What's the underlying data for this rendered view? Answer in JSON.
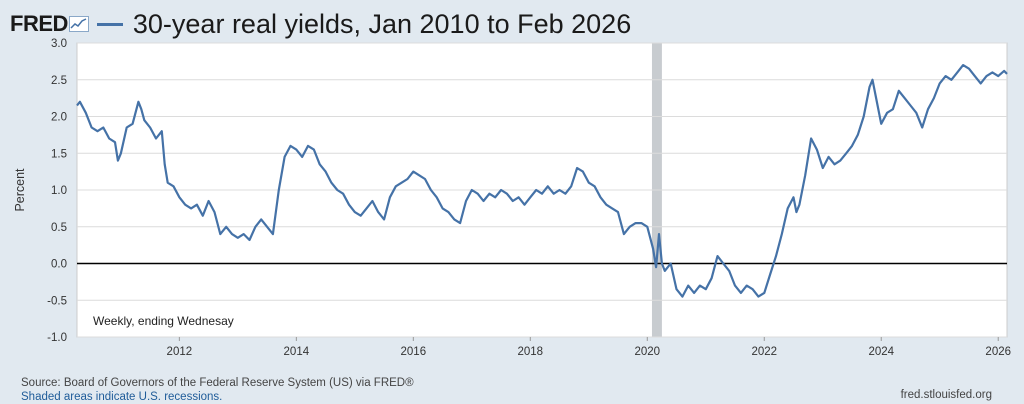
{
  "header": {
    "logo_text": "FRED",
    "title": "30-year real yields, Jan 2010 to Feb 2026"
  },
  "footer": {
    "source": "Source: Board of Governors of the Federal Reserve System (US) via FRED®",
    "recessions_note": "Shaded areas indicate U.S. recessions.",
    "site": "fred.stlouisfed.org"
  },
  "colors": {
    "series": "#4572a7",
    "background": "#e1e9f0",
    "plot": "#ffffff",
    "recession": "#c8ccd0"
  },
  "chart_data": {
    "type": "line",
    "title": "30-year real yields, Jan 2010 to Feb 2026",
    "ylabel": "Percent",
    "annotation": "Weekly, ending Wednesay",
    "ylim": [
      -1.0,
      3.0
    ],
    "xlim": [
      2010.25,
      2026.15
    ],
    "y_ticks": [
      "3.0",
      "2.5",
      "2.0",
      "1.5",
      "1.0",
      "0.5",
      "0.0",
      "-0.5",
      "-1.0"
    ],
    "x_ticks": [
      "2012",
      "2014",
      "2016",
      "2018",
      "2020",
      "2022",
      "2024",
      "2026"
    ],
    "zero_line": 0,
    "recessions": [
      {
        "start": 2020.08,
        "end": 2020.25
      }
    ],
    "series": [
      {
        "points": [
          [
            2010.25,
            2.15
          ],
          [
            2010.3,
            2.2
          ],
          [
            2010.4,
            2.05
          ],
          [
            2010.5,
            1.85
          ],
          [
            2010.6,
            1.8
          ],
          [
            2010.7,
            1.85
          ],
          [
            2010.8,
            1.7
          ],
          [
            2010.9,
            1.65
          ],
          [
            2010.95,
            1.4
          ],
          [
            2011.0,
            1.5
          ],
          [
            2011.1,
            1.85
          ],
          [
            2011.2,
            1.9
          ],
          [
            2011.3,
            2.2
          ],
          [
            2011.35,
            2.1
          ],
          [
            2011.4,
            1.95
          ],
          [
            2011.5,
            1.85
          ],
          [
            2011.6,
            1.7
          ],
          [
            2011.7,
            1.8
          ],
          [
            2011.75,
            1.35
          ],
          [
            2011.8,
            1.1
          ],
          [
            2011.9,
            1.05
          ],
          [
            2012.0,
            0.9
          ],
          [
            2012.1,
            0.8
          ],
          [
            2012.2,
            0.75
          ],
          [
            2012.3,
            0.8
          ],
          [
            2012.4,
            0.65
          ],
          [
            2012.5,
            0.85
          ],
          [
            2012.6,
            0.7
          ],
          [
            2012.7,
            0.4
          ],
          [
            2012.8,
            0.5
          ],
          [
            2012.9,
            0.4
          ],
          [
            2013.0,
            0.35
          ],
          [
            2013.1,
            0.4
          ],
          [
            2013.2,
            0.32
          ],
          [
            2013.3,
            0.5
          ],
          [
            2013.4,
            0.6
          ],
          [
            2013.5,
            0.5
          ],
          [
            2013.6,
            0.4
          ],
          [
            2013.7,
            1.0
          ],
          [
            2013.8,
            1.45
          ],
          [
            2013.9,
            1.6
          ],
          [
            2014.0,
            1.55
          ],
          [
            2014.1,
            1.45
          ],
          [
            2014.2,
            1.6
          ],
          [
            2014.3,
            1.55
          ],
          [
            2014.4,
            1.35
          ],
          [
            2014.5,
            1.25
          ],
          [
            2014.6,
            1.1
          ],
          [
            2014.7,
            1.0
          ],
          [
            2014.8,
            0.95
          ],
          [
            2014.9,
            0.8
          ],
          [
            2015.0,
            0.7
          ],
          [
            2015.1,
            0.65
          ],
          [
            2015.2,
            0.75
          ],
          [
            2015.3,
            0.85
          ],
          [
            2015.4,
            0.7
          ],
          [
            2015.5,
            0.6
          ],
          [
            2015.6,
            0.9
          ],
          [
            2015.7,
            1.05
          ],
          [
            2015.8,
            1.1
          ],
          [
            2015.9,
            1.15
          ],
          [
            2016.0,
            1.25
          ],
          [
            2016.1,
            1.2
          ],
          [
            2016.2,
            1.15
          ],
          [
            2016.3,
            1.0
          ],
          [
            2016.4,
            0.9
          ],
          [
            2016.5,
            0.75
          ],
          [
            2016.6,
            0.7
          ],
          [
            2016.7,
            0.6
          ],
          [
            2016.8,
            0.55
          ],
          [
            2016.9,
            0.85
          ],
          [
            2017.0,
            1.0
          ],
          [
            2017.1,
            0.95
          ],
          [
            2017.2,
            0.85
          ],
          [
            2017.3,
            0.95
          ],
          [
            2017.4,
            0.9
          ],
          [
            2017.5,
            1.0
          ],
          [
            2017.6,
            0.95
          ],
          [
            2017.7,
            0.85
          ],
          [
            2017.8,
            0.9
          ],
          [
            2017.9,
            0.8
          ],
          [
            2018.0,
            0.9
          ],
          [
            2018.1,
            1.0
          ],
          [
            2018.2,
            0.95
          ],
          [
            2018.3,
            1.05
          ],
          [
            2018.4,
            0.95
          ],
          [
            2018.5,
            1.0
          ],
          [
            2018.6,
            0.95
          ],
          [
            2018.7,
            1.05
          ],
          [
            2018.8,
            1.3
          ],
          [
            2018.9,
            1.25
          ],
          [
            2019.0,
            1.1
          ],
          [
            2019.1,
            1.05
          ],
          [
            2019.2,
            0.9
          ],
          [
            2019.3,
            0.8
          ],
          [
            2019.4,
            0.75
          ],
          [
            2019.5,
            0.7
          ],
          [
            2019.6,
            0.4
          ],
          [
            2019.7,
            0.5
          ],
          [
            2019.8,
            0.55
          ],
          [
            2019.9,
            0.55
          ],
          [
            2020.0,
            0.5
          ],
          [
            2020.05,
            0.35
          ],
          [
            2020.1,
            0.2
          ],
          [
            2020.15,
            -0.05
          ],
          [
            2020.2,
            0.4
          ],
          [
            2020.25,
            0.0
          ],
          [
            2020.3,
            -0.1
          ],
          [
            2020.4,
            0.0
          ],
          [
            2020.5,
            -0.35
          ],
          [
            2020.6,
            -0.45
          ],
          [
            2020.7,
            -0.3
          ],
          [
            2020.8,
            -0.4
          ],
          [
            2020.9,
            -0.3
          ],
          [
            2021.0,
            -0.35
          ],
          [
            2021.1,
            -0.2
          ],
          [
            2021.2,
            0.1
          ],
          [
            2021.3,
            0.0
          ],
          [
            2021.4,
            -0.1
          ],
          [
            2021.5,
            -0.3
          ],
          [
            2021.6,
            -0.4
          ],
          [
            2021.7,
            -0.3
          ],
          [
            2021.8,
            -0.35
          ],
          [
            2021.9,
            -0.45
          ],
          [
            2022.0,
            -0.4
          ],
          [
            2022.1,
            -0.15
          ],
          [
            2022.2,
            0.1
          ],
          [
            2022.3,
            0.4
          ],
          [
            2022.4,
            0.75
          ],
          [
            2022.5,
            0.9
          ],
          [
            2022.55,
            0.7
          ],
          [
            2022.6,
            0.8
          ],
          [
            2022.7,
            1.2
          ],
          [
            2022.8,
            1.7
          ],
          [
            2022.9,
            1.55
          ],
          [
            2023.0,
            1.3
          ],
          [
            2023.1,
            1.45
          ],
          [
            2023.2,
            1.35
          ],
          [
            2023.3,
            1.4
          ],
          [
            2023.4,
            1.5
          ],
          [
            2023.5,
            1.6
          ],
          [
            2023.6,
            1.75
          ],
          [
            2023.7,
            2.0
          ],
          [
            2023.8,
            2.4
          ],
          [
            2023.85,
            2.5
          ],
          [
            2023.9,
            2.3
          ],
          [
            2024.0,
            1.9
          ],
          [
            2024.1,
            2.05
          ],
          [
            2024.2,
            2.1
          ],
          [
            2024.3,
            2.35
          ],
          [
            2024.4,
            2.25
          ],
          [
            2024.5,
            2.15
          ],
          [
            2024.6,
            2.05
          ],
          [
            2024.7,
            1.85
          ],
          [
            2024.8,
            2.1
          ],
          [
            2024.9,
            2.25
          ],
          [
            2025.0,
            2.45
          ],
          [
            2025.1,
            2.55
          ],
          [
            2025.2,
            2.5
          ],
          [
            2025.3,
            2.6
          ],
          [
            2025.4,
            2.7
          ],
          [
            2025.5,
            2.65
          ],
          [
            2025.6,
            2.55
          ],
          [
            2025.7,
            2.45
          ],
          [
            2025.8,
            2.55
          ],
          [
            2025.9,
            2.6
          ],
          [
            2026.0,
            2.55
          ],
          [
            2026.1,
            2.62
          ],
          [
            2026.15,
            2.58
          ]
        ]
      }
    ]
  }
}
